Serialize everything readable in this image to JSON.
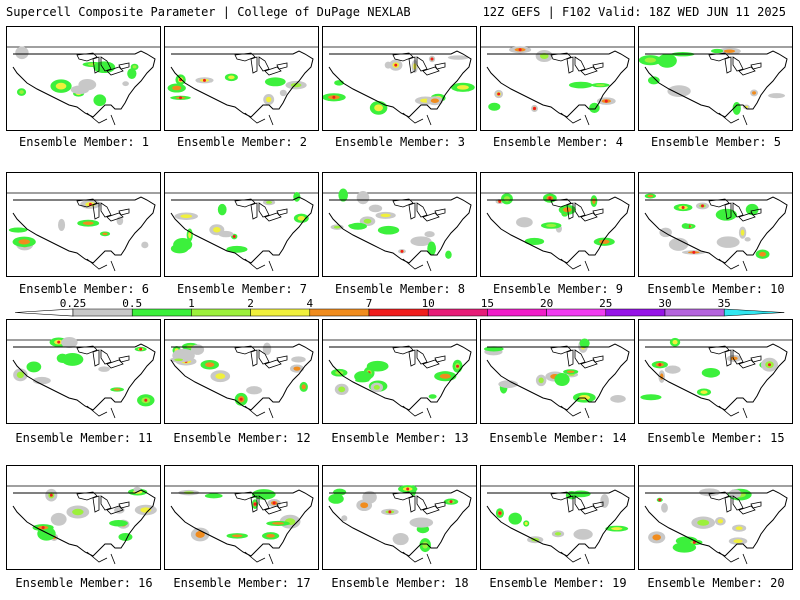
{
  "header": {
    "title_left": "Supercell Composite Parameter | College of DuPage NEXLAB",
    "title_right": "12Z GEFS | F102 Valid: 18Z WED JUN 11 2025"
  },
  "panels": [
    {
      "caption": "Ensemble Member: 1"
    },
    {
      "caption": "Ensemble Member: 2"
    },
    {
      "caption": "Ensemble Member: 3"
    },
    {
      "caption": "Ensemble Member: 4"
    },
    {
      "caption": "Ensemble Member: 5"
    },
    {
      "caption": "Ensemble Member: 6"
    },
    {
      "caption": "Ensemble Member: 7"
    },
    {
      "caption": "Ensemble Member: 8"
    },
    {
      "caption": "Ensemble Member: 9"
    },
    {
      "caption": "Ensemble Member: 10"
    },
    {
      "caption": "Ensemble Member: 11"
    },
    {
      "caption": "Ensemble Member: 12"
    },
    {
      "caption": "Ensemble Member: 13"
    },
    {
      "caption": "Ensemble Member: 14"
    },
    {
      "caption": "Ensemble Member: 15"
    },
    {
      "caption": "Ensemble Member: 16"
    },
    {
      "caption": "Ensemble Member: 17"
    },
    {
      "caption": "Ensemble Member: 18"
    },
    {
      "caption": "Ensemble Member: 19"
    },
    {
      "caption": "Ensemble Member: 20"
    }
  ],
  "legend": {
    "labels": [
      "0.25",
      "0.5",
      "1",
      "2",
      "4",
      "7",
      "10",
      "15",
      "20",
      "25",
      "30",
      "35"
    ],
    "colors": [
      "#c8c8c8",
      "#3cf03c",
      "#9cf03c",
      "#f0f03c",
      "#f08c1e",
      "#f01e1e",
      "#e61e78",
      "#f01ec8",
      "#f03cf0",
      "#9614e6",
      "#b464dc",
      "#32e6f0"
    ]
  }
}
